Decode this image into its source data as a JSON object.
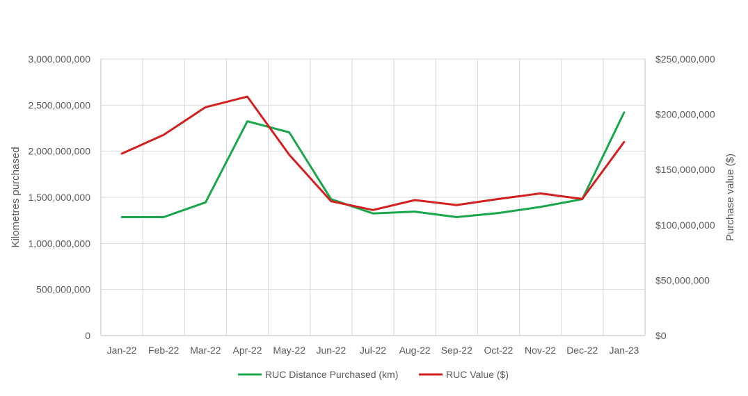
{
  "chart_data": {
    "type": "line",
    "title": "",
    "categories": [
      "Jan-22",
      "Feb-22",
      "Mar-22",
      "Apr-22",
      "May-22",
      "Jun-22",
      "Jul-22",
      "Aug-22",
      "Sep-22",
      "Oct-22",
      "Nov-22",
      "Dec-22",
      "Jan-23"
    ],
    "ylabel": "Kilometres purchased",
    "y2label": "Purchase value ($)",
    "ylim": [
      0,
      3000000000
    ],
    "y2lim": [
      0,
      250000000
    ],
    "yticks": [
      "0",
      "500,000,000",
      "1,000,000,000",
      "1,500,000,000",
      "2,000,000,000",
      "2,500,000,000",
      "3,000,000,000"
    ],
    "y2ticks": [
      "$0",
      "$50,000,000",
      "$100,000,000",
      "$150,000,000",
      "$200,000,000",
      "$250,000,000"
    ],
    "grid": true,
    "legend_position": "bottom",
    "series": [
      {
        "name": "RUC Distance Purchased (km)",
        "axis": "left",
        "color": "#1aa64b",
        "values": [
          1285000000,
          1285000000,
          1445000000,
          2325000000,
          2205000000,
          1480000000,
          1325000000,
          1345000000,
          1285000000,
          1330000000,
          1395000000,
          1480000000,
          2420000000
        ]
      },
      {
        "name": "RUC Value ($)",
        "axis": "right",
        "color": "#d41f1f",
        "values": [
          164500000,
          181500000,
          206500000,
          216000000,
          163500000,
          121500000,
          113500000,
          122500000,
          118000000,
          123500000,
          128500000,
          123500000,
          175000000
        ]
      }
    ]
  }
}
